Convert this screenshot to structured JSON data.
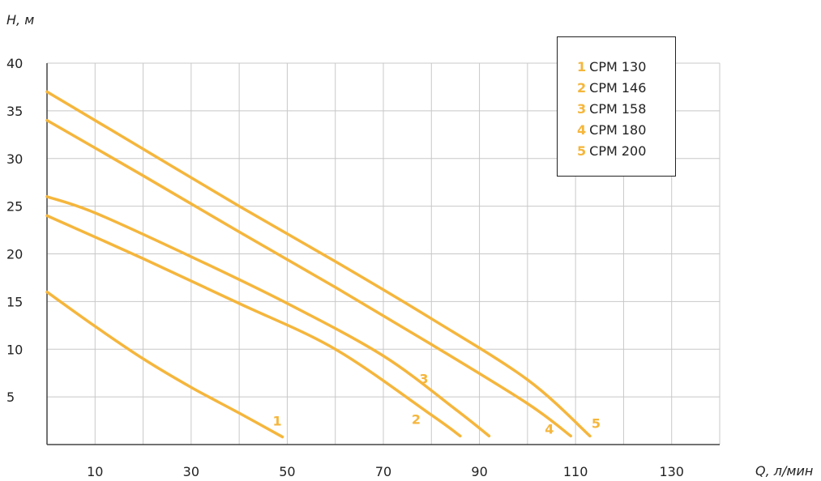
{
  "chart_data": {
    "type": "line",
    "ylabel": "H, м",
    "xlabel": "Q, л/мин",
    "xlim": [
      0,
      140
    ],
    "ylim": [
      0,
      40
    ],
    "x_ticks": [
      10,
      30,
      50,
      70,
      90,
      110,
      130
    ],
    "y_ticks": [
      5,
      10,
      15,
      20,
      25,
      30,
      35,
      40
    ],
    "grid": true,
    "legend_position": "top-right",
    "colors": {
      "series": "#f5b63c",
      "grid": "#c8c8c8",
      "axis": "#444444"
    },
    "series": [
      {
        "id": "1",
        "name": "CPM 130",
        "x": [
          0,
          10,
          20,
          30,
          40,
          49
        ],
        "y": [
          16,
          12.4,
          9,
          6,
          3.3,
          0.8
        ]
      },
      {
        "id": "2",
        "name": "CPM 146",
        "x": [
          0,
          20,
          40,
          60,
          80,
          86
        ],
        "y": [
          24,
          19.5,
          14.8,
          10,
          3.1,
          0.9
        ]
      },
      {
        "id": "3",
        "name": "CPM 158",
        "x": [
          0,
          10,
          30,
          50,
          70,
          85,
          92
        ],
        "y": [
          26,
          24.3,
          19.7,
          14.8,
          9.3,
          3.7,
          0.9
        ]
      },
      {
        "id": "4",
        "name": "CPM 180",
        "x": [
          0,
          20,
          40,
          60,
          80,
          100,
          109
        ],
        "y": [
          34,
          28.2,
          22.3,
          16.5,
          10.5,
          4.3,
          0.9
        ]
      },
      {
        "id": "5",
        "name": "CPM 200",
        "x": [
          0,
          20,
          40,
          60,
          80,
          100,
          113
        ],
        "y": [
          37,
          31,
          25,
          19.2,
          13.2,
          6.8,
          0.9
        ]
      }
    ]
  }
}
